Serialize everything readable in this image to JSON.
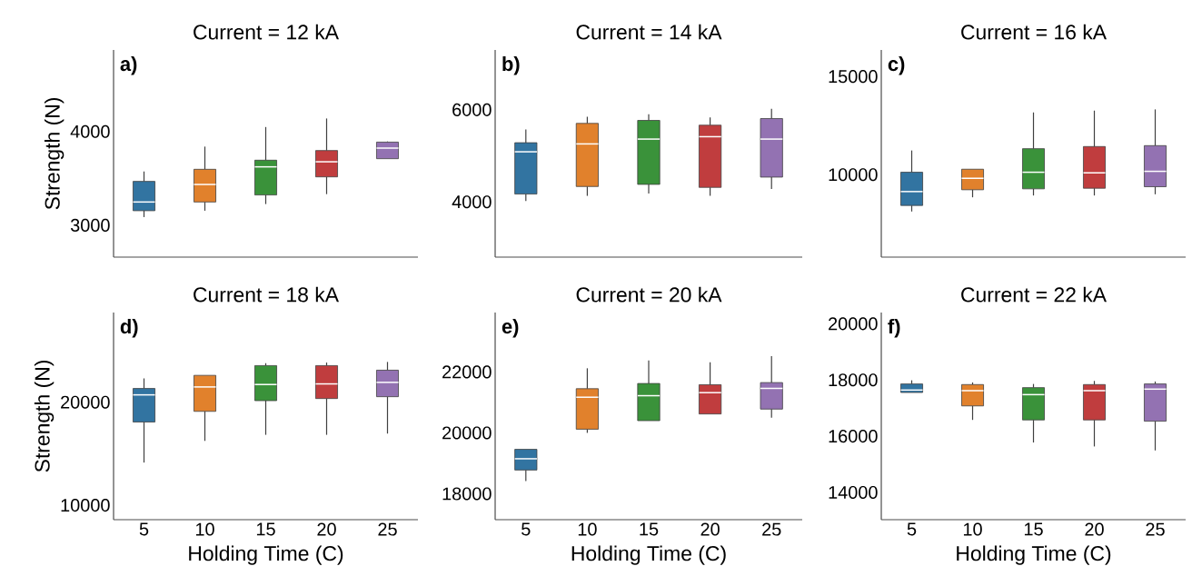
{
  "chart_data": [
    {
      "type": "box",
      "title": "Current = 12 kA",
      "ylabel": "Strength (N)",
      "categories": [
        "5",
        "10",
        "15",
        "20",
        "25"
      ],
      "colors": [
        "#3274a1",
        "#e1812c",
        "#3a923a",
        "#c03d3e",
        "#9372b2"
      ],
      "ylim": [
        2660,
        4870
      ],
      "yticks": [
        3000,
        4000
      ],
      "tick_labels": "y",
      "grid": false,
      "annotations": [
        "a)"
      ],
      "boxes": [
        {
          "low": 3087,
          "q1": 3155,
          "median": 3248,
          "q3": 3468,
          "high": 3574
        },
        {
          "low": 3155,
          "q1": 3248,
          "median": 3435,
          "q3": 3597,
          "high": 3839
        },
        {
          "low": 3226,
          "q1": 3323,
          "median": 3623,
          "q3": 3694,
          "high": 4048
        },
        {
          "low": 3332,
          "q1": 3516,
          "median": 3677,
          "q3": 3797,
          "high": 4139
        },
        {
          "low": 3710,
          "q1": 3710,
          "median": 3823,
          "q3": 3887,
          "high": 3894
        }
      ]
    },
    {
      "type": "box",
      "title": "Current = 14 kA",
      "categories": [
        "5",
        "10",
        "15",
        "20",
        "25"
      ],
      "colors": [
        "#3274a1",
        "#e1812c",
        "#3a923a",
        "#c03d3e",
        "#9372b2"
      ],
      "ylim": [
        2800,
        7300
      ],
      "yticks": [
        4000,
        6000
      ],
      "tick_labels": "y",
      "grid": false,
      "annotations": [
        "b)"
      ],
      "boxes": [
        {
          "low": 4020,
          "q1": 4170,
          "median": 5088,
          "q3": 5285,
          "high": 5574
        },
        {
          "low": 4131,
          "q1": 4334,
          "median": 5259,
          "q3": 5705,
          "high": 5849
        },
        {
          "low": 4184,
          "q1": 4380,
          "median": 5364,
          "q3": 5770,
          "high": 5902
        },
        {
          "low": 4131,
          "q1": 4315,
          "median": 5416,
          "q3": 5666,
          "high": 5836
        },
        {
          "low": 4282,
          "q1": 4538,
          "median": 5364,
          "q3": 5810,
          "high": 6020
        }
      ]
    },
    {
      "type": "box",
      "title": "Current = 16 kA",
      "categories": [
        "5",
        "10",
        "15",
        "20",
        "25"
      ],
      "colors": [
        "#3274a1",
        "#e1812c",
        "#3a923a",
        "#c03d3e",
        "#9372b2"
      ],
      "ylim": [
        5800,
        16350
      ],
      "yticks": [
        10000,
        15000
      ],
      "tick_labels": "y",
      "grid": false,
      "annotations": [
        "c)"
      ],
      "boxes": [
        {
          "low": 8123,
          "q1": 8431,
          "median": 9138,
          "q3": 10123,
          "high": 11231
        },
        {
          "low": 8846,
          "q1": 9231,
          "median": 9815,
          "q3": 10277,
          "high": 10277
        },
        {
          "low": 8938,
          "q1": 9277,
          "median": 10123,
          "q3": 11323,
          "high": 13169
        },
        {
          "low": 8938,
          "q1": 9308,
          "median": 10092,
          "q3": 11431,
          "high": 13262
        },
        {
          "low": 9000,
          "q1": 9385,
          "median": 10169,
          "q3": 11477,
          "high": 13323
        }
      ]
    },
    {
      "type": "box",
      "title": "Current = 18 kA",
      "xlabel": "Holding Time (C)",
      "ylabel": "Strength (N)",
      "categories": [
        "5",
        "10",
        "15",
        "20",
        "25"
      ],
      "colors": [
        "#3274a1",
        "#e1812c",
        "#3a923a",
        "#c03d3e",
        "#9372b2"
      ],
      "ylim": [
        8600,
        28700
      ],
      "yticks": [
        10000,
        20000
      ],
      "grid": false,
      "annotations": [
        "d)"
      ],
      "boxes": [
        {
          "low": 14142,
          "q1": 18077,
          "median": 20710,
          "q3": 21331,
          "high": 22308
        },
        {
          "low": 16243,
          "q1": 19112,
          "median": 21479,
          "q3": 22604,
          "high": 22604
        },
        {
          "low": 16834,
          "q1": 20148,
          "median": 21716,
          "q3": 23550,
          "high": 23787
        },
        {
          "low": 16834,
          "q1": 20355,
          "median": 21775,
          "q3": 23550,
          "high": 23846
        },
        {
          "low": 16953,
          "q1": 20533,
          "median": 21923,
          "q3": 23107,
          "high": 23905
        }
      ]
    },
    {
      "type": "box",
      "title": "Current = 20 kA",
      "xlabel": "Holding Time (C)",
      "categories": [
        "5",
        "10",
        "15",
        "20",
        "25"
      ],
      "colors": [
        "#3274a1",
        "#e1812c",
        "#3a923a",
        "#c03d3e",
        "#9372b2"
      ],
      "ylim": [
        17150,
        23950
      ],
      "yticks": [
        18000,
        20000,
        22000
      ],
      "grid": false,
      "annotations": [
        "e)"
      ],
      "boxes": [
        {
          "low": 18420,
          "q1": 18780,
          "median": 19150,
          "q3": 19460,
          "high": 19460
        },
        {
          "low": 20000,
          "q1": 20120,
          "median": 21170,
          "q3": 21450,
          "high": 22120
        },
        {
          "low": 20400,
          "q1": 20400,
          "median": 21220,
          "q3": 21620,
          "high": 22380
        },
        {
          "low": 20620,
          "q1": 20620,
          "median": 21320,
          "q3": 21580,
          "high": 22320
        },
        {
          "low": 20500,
          "q1": 20780,
          "median": 21460,
          "q3": 21650,
          "high": 22520
        }
      ]
    },
    {
      "type": "box",
      "title": "Current = 22 kA",
      "xlabel": "Holding Time (C)",
      "categories": [
        "5",
        "10",
        "15",
        "20",
        "25"
      ],
      "colors": [
        "#3274a1",
        "#e1812c",
        "#3a923a",
        "#c03d3e",
        "#9372b2"
      ],
      "ylim": [
        13030,
        20400
      ],
      "yticks": [
        14000,
        16000,
        18000,
        20000
      ],
      "grid": false,
      "annotations": [
        "f)"
      ],
      "boxes": [
        {
          "low": 17555,
          "q1": 17555,
          "median": 17642,
          "q3": 17859,
          "high": 17989
        },
        {
          "low": 16579,
          "q1": 17078,
          "median": 17620,
          "q3": 17837,
          "high": 17913
        },
        {
          "low": 15776,
          "q1": 16579,
          "median": 17479,
          "q3": 17729,
          "high": 17859
        },
        {
          "low": 15635,
          "q1": 16579,
          "median": 17620,
          "q3": 17837,
          "high": 17967
        },
        {
          "low": 15494,
          "q1": 16535,
          "median": 17675,
          "q3": 17859,
          "high": 17946
        }
      ]
    }
  ]
}
